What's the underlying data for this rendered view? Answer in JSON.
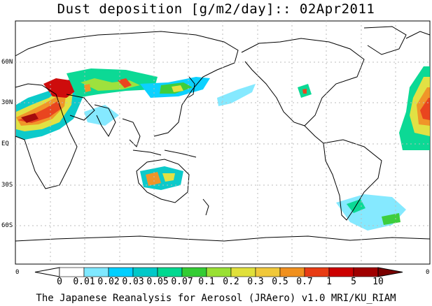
{
  "title": "Dust deposition [g/m2/day]:: 02Apr2011",
  "footer": "The Japanese Reanalysis for Aerosol (JRAero) v1.0 MRI/KU_RIAM",
  "lat_labels": [
    "60N",
    "30N",
    "EQ",
    "30S",
    "60S"
  ],
  "corner_left": "0",
  "corner_right": "0",
  "colorbar": {
    "thresholds": [
      "0",
      "0.01",
      "0.02",
      "0.03",
      "0.05",
      "0.07",
      "0.1",
      "0.2",
      "0.3",
      "0.5",
      "0.7",
      "1",
      "5",
      "10"
    ],
    "colors": [
      "#ffffff",
      "#ffffff",
      "#7fe8ff",
      "#00cfff",
      "#00c8c8",
      "#00d890",
      "#33cc33",
      "#99e033",
      "#e0e03a",
      "#f0c83a",
      "#f0901e",
      "#e83c14",
      "#cc0000",
      "#a00000",
      "#7a0000"
    ]
  }
}
